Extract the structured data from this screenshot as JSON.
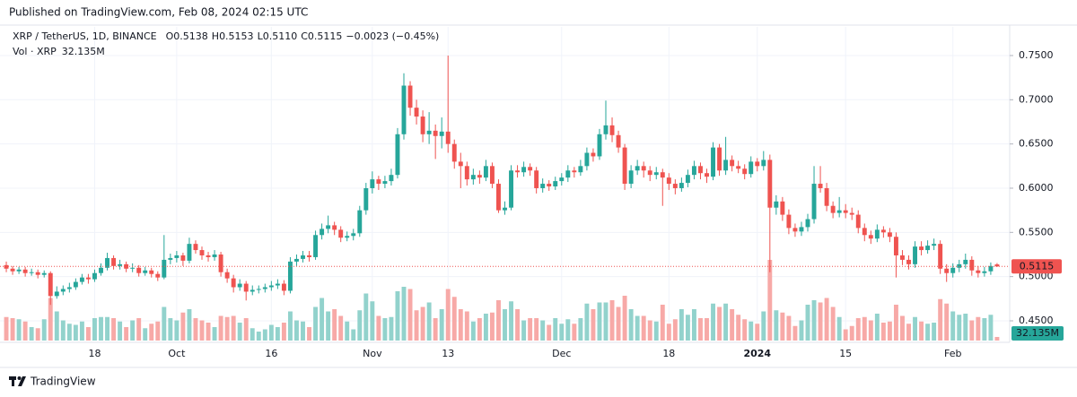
{
  "chart_data": {
    "type": "candlestick",
    "published": "Published on TradingView.com, Feb 08, 2024 02:15 UTC",
    "legend": {
      "symbol": "XRP / TetherUS, 1D, BINANCE",
      "values": [
        {
          "label": "O",
          "value": "0.5138"
        },
        {
          "label": "H",
          "value": "0.5153"
        },
        {
          "label": "L",
          "value": "0.5110"
        },
        {
          "label": "C",
          "value": "0.5115"
        }
      ],
      "change": "−0.0023 (−0.45%)",
      "volume_name": "Vol · XRP"
    },
    "last_volume_label": "32.135M",
    "brand": "TradingView",
    "up_color": "#26a69a",
    "down_color": "#ef5350",
    "volume_up_color": "#92d2cc",
    "volume_down_color": "#f7a9a7",
    "ylim": [
      0.4277,
      0.7824
    ],
    "yticks": [
      {
        "value": 0.45,
        "label": "0.4500"
      },
      {
        "value": 0.5,
        "label": "0.5000"
      },
      {
        "value": 0.55,
        "label": "0.5500"
      },
      {
        "value": 0.6,
        "label": "0.6000"
      },
      {
        "value": 0.65,
        "label": "0.6500"
      },
      {
        "value": 0.7,
        "label": "0.7000"
      },
      {
        "value": 0.75,
        "label": "0.7500"
      }
    ],
    "vol_lim": [
      0,
      1000
    ],
    "xlim": [
      -1,
      159
    ],
    "xticks": [
      {
        "value": 14,
        "label": "18"
      },
      {
        "value": 27,
        "label": "Oct"
      },
      {
        "value": 42,
        "label": "16"
      },
      {
        "value": 58,
        "label": "Nov"
      },
      {
        "value": 70,
        "label": "13"
      },
      {
        "value": 88,
        "label": "Dec"
      },
      {
        "value": 105,
        "label": "18"
      },
      {
        "value": 119,
        "label": "2024"
      },
      {
        "value": 133,
        "label": "15"
      },
      {
        "value": 150,
        "label": "Feb"
      }
    ],
    "grid": true,
    "ohlc": [
      [
        0.513,
        0.517,
        0.505,
        0.509
      ],
      [
        0.509,
        0.512,
        0.502,
        0.506
      ],
      [
        0.506,
        0.511,
        0.503,
        0.508
      ],
      [
        0.508,
        0.511,
        0.5,
        0.504
      ],
      [
        0.504,
        0.509,
        0.501,
        0.505
      ],
      [
        0.505,
        0.508,
        0.498,
        0.502
      ],
      [
        0.502,
        0.507,
        0.499,
        0.504
      ],
      [
        0.504,
        0.506,
        0.468,
        0.478
      ],
      [
        0.478,
        0.489,
        0.475,
        0.483
      ],
      [
        0.483,
        0.49,
        0.479,
        0.486
      ],
      [
        0.486,
        0.493,
        0.482,
        0.488
      ],
      [
        0.488,
        0.498,
        0.485,
        0.494
      ],
      [
        0.494,
        0.503,
        0.491,
        0.499
      ],
      [
        0.499,
        0.503,
        0.492,
        0.497
      ],
      [
        0.497,
        0.508,
        0.494,
        0.504
      ],
      [
        0.504,
        0.515,
        0.501,
        0.51
      ],
      [
        0.51,
        0.527,
        0.507,
        0.521
      ],
      [
        0.521,
        0.524,
        0.508,
        0.512
      ],
      [
        0.512,
        0.519,
        0.508,
        0.514
      ],
      [
        0.514,
        0.517,
        0.505,
        0.509
      ],
      [
        0.509,
        0.515,
        0.505,
        0.51
      ],
      [
        0.51,
        0.513,
        0.5,
        0.504
      ],
      [
        0.504,
        0.511,
        0.501,
        0.507
      ],
      [
        0.507,
        0.51,
        0.499,
        0.503
      ],
      [
        0.503,
        0.506,
        0.495,
        0.499
      ],
      [
        0.499,
        0.547,
        0.497,
        0.519
      ],
      [
        0.519,
        0.526,
        0.514,
        0.521
      ],
      [
        0.521,
        0.529,
        0.516,
        0.524
      ],
      [
        0.524,
        0.527,
        0.512,
        0.518
      ],
      [
        0.518,
        0.544,
        0.515,
        0.537
      ],
      [
        0.537,
        0.541,
        0.526,
        0.53
      ],
      [
        0.53,
        0.534,
        0.519,
        0.524
      ],
      [
        0.524,
        0.528,
        0.517,
        0.522
      ],
      [
        0.522,
        0.53,
        0.518,
        0.525
      ],
      [
        0.525,
        0.528,
        0.5,
        0.505
      ],
      [
        0.505,
        0.509,
        0.493,
        0.498
      ],
      [
        0.498,
        0.502,
        0.482,
        0.488
      ],
      [
        0.488,
        0.497,
        0.484,
        0.492
      ],
      [
        0.492,
        0.495,
        0.473,
        0.483
      ],
      [
        0.483,
        0.49,
        0.479,
        0.485
      ],
      [
        0.485,
        0.49,
        0.481,
        0.486
      ],
      [
        0.486,
        0.492,
        0.482,
        0.488
      ],
      [
        0.488,
        0.495,
        0.484,
        0.49
      ],
      [
        0.49,
        0.497,
        0.486,
        0.492
      ],
      [
        0.492,
        0.496,
        0.479,
        0.484
      ],
      [
        0.484,
        0.522,
        0.481,
        0.517
      ],
      [
        0.517,
        0.525,
        0.512,
        0.52
      ],
      [
        0.52,
        0.529,
        0.516,
        0.524
      ],
      [
        0.524,
        0.529,
        0.517,
        0.522
      ],
      [
        0.522,
        0.552,
        0.519,
        0.547
      ],
      [
        0.547,
        0.56,
        0.542,
        0.554
      ],
      [
        0.554,
        0.569,
        0.549,
        0.558
      ],
      [
        0.558,
        0.562,
        0.547,
        0.553
      ],
      [
        0.553,
        0.557,
        0.539,
        0.544
      ],
      [
        0.544,
        0.551,
        0.54,
        0.546
      ],
      [
        0.546,
        0.554,
        0.541,
        0.549
      ],
      [
        0.549,
        0.58,
        0.545,
        0.575
      ],
      [
        0.575,
        0.606,
        0.57,
        0.6
      ],
      [
        0.6,
        0.619,
        0.594,
        0.61
      ],
      [
        0.61,
        0.614,
        0.598,
        0.605
      ],
      [
        0.605,
        0.614,
        0.6,
        0.608
      ],
      [
        0.608,
        0.622,
        0.603,
        0.615
      ],
      [
        0.615,
        0.668,
        0.611,
        0.661
      ],
      [
        0.661,
        0.73,
        0.655,
        0.716
      ],
      [
        0.716,
        0.721,
        0.682,
        0.691
      ],
      [
        0.691,
        0.7,
        0.672,
        0.681
      ],
      [
        0.681,
        0.688,
        0.652,
        0.661
      ],
      [
        0.661,
        0.686,
        0.65,
        0.665
      ],
      [
        0.665,
        0.672,
        0.633,
        0.659
      ],
      [
        0.659,
        0.68,
        0.645,
        0.664
      ],
      [
        0.664,
        0.75,
        0.64,
        0.65
      ],
      [
        0.65,
        0.655,
        0.622,
        0.63
      ],
      [
        0.63,
        0.64,
        0.6,
        0.625
      ],
      [
        0.625,
        0.63,
        0.603,
        0.61
      ],
      [
        0.61,
        0.622,
        0.604,
        0.615
      ],
      [
        0.615,
        0.62,
        0.605,
        0.612
      ],
      [
        0.612,
        0.632,
        0.608,
        0.625
      ],
      [
        0.625,
        0.629,
        0.6,
        0.605
      ],
      [
        0.605,
        0.61,
        0.572,
        0.575
      ],
      [
        0.575,
        0.585,
        0.57,
        0.578
      ],
      [
        0.578,
        0.626,
        0.575,
        0.62
      ],
      [
        0.62,
        0.626,
        0.612,
        0.618
      ],
      [
        0.618,
        0.63,
        0.613,
        0.624
      ],
      [
        0.624,
        0.628,
        0.614,
        0.62
      ],
      [
        0.62,
        0.624,
        0.594,
        0.6
      ],
      [
        0.6,
        0.611,
        0.595,
        0.605
      ],
      [
        0.605,
        0.609,
        0.597,
        0.602
      ],
      [
        0.602,
        0.613,
        0.598,
        0.608
      ],
      [
        0.608,
        0.617,
        0.603,
        0.612
      ],
      [
        0.612,
        0.626,
        0.607,
        0.62
      ],
      [
        0.62,
        0.624,
        0.612,
        0.618
      ],
      [
        0.618,
        0.632,
        0.614,
        0.625
      ],
      [
        0.625,
        0.646,
        0.62,
        0.64
      ],
      [
        0.64,
        0.645,
        0.63,
        0.636
      ],
      [
        0.636,
        0.667,
        0.632,
        0.661
      ],
      [
        0.661,
        0.699,
        0.655,
        0.671
      ],
      [
        0.671,
        0.68,
        0.652,
        0.66
      ],
      [
        0.66,
        0.665,
        0.64,
        0.646
      ],
      [
        0.646,
        0.65,
        0.598,
        0.605
      ],
      [
        0.605,
        0.626,
        0.6,
        0.62
      ],
      [
        0.62,
        0.632,
        0.615,
        0.625
      ],
      [
        0.625,
        0.63,
        0.612,
        0.62
      ],
      [
        0.62,
        0.625,
        0.608,
        0.615
      ],
      [
        0.615,
        0.624,
        0.61,
        0.618
      ],
      [
        0.618,
        0.622,
        0.58,
        0.612
      ],
      [
        0.612,
        0.617,
        0.598,
        0.605
      ],
      [
        0.605,
        0.61,
        0.593,
        0.6
      ],
      [
        0.6,
        0.612,
        0.596,
        0.606
      ],
      [
        0.606,
        0.621,
        0.601,
        0.615
      ],
      [
        0.615,
        0.631,
        0.61,
        0.625
      ],
      [
        0.625,
        0.629,
        0.61,
        0.617
      ],
      [
        0.617,
        0.622,
        0.606,
        0.613
      ],
      [
        0.613,
        0.652,
        0.609,
        0.646
      ],
      [
        0.646,
        0.65,
        0.614,
        0.62
      ],
      [
        0.62,
        0.658,
        0.615,
        0.632
      ],
      [
        0.632,
        0.637,
        0.619,
        0.625
      ],
      [
        0.625,
        0.631,
        0.617,
        0.622
      ],
      [
        0.622,
        0.627,
        0.61,
        0.616
      ],
      [
        0.616,
        0.636,
        0.612,
        0.63
      ],
      [
        0.63,
        0.634,
        0.619,
        0.625
      ],
      [
        0.625,
        0.642,
        0.62,
        0.632
      ],
      [
        0.632,
        0.638,
        0.505,
        0.578
      ],
      [
        0.578,
        0.592,
        0.57,
        0.585
      ],
      [
        0.585,
        0.59,
        0.563,
        0.57
      ],
      [
        0.57,
        0.576,
        0.548,
        0.555
      ],
      [
        0.555,
        0.56,
        0.545,
        0.551
      ],
      [
        0.551,
        0.562,
        0.546,
        0.556
      ],
      [
        0.556,
        0.571,
        0.551,
        0.565
      ],
      [
        0.565,
        0.625,
        0.56,
        0.605
      ],
      [
        0.605,
        0.625,
        0.595,
        0.6
      ],
      [
        0.6,
        0.606,
        0.574,
        0.58
      ],
      [
        0.58,
        0.585,
        0.566,
        0.572
      ],
      [
        0.572,
        0.59,
        0.567,
        0.575
      ],
      [
        0.575,
        0.582,
        0.566,
        0.572
      ],
      [
        0.572,
        0.578,
        0.564,
        0.57
      ],
      [
        0.57,
        0.575,
        0.549,
        0.555
      ],
      [
        0.555,
        0.56,
        0.54,
        0.547
      ],
      [
        0.547,
        0.552,
        0.537,
        0.543
      ],
      [
        0.543,
        0.559,
        0.539,
        0.553
      ],
      [
        0.553,
        0.557,
        0.544,
        0.55
      ],
      [
        0.55,
        0.555,
        0.539,
        0.545
      ],
      [
        0.545,
        0.55,
        0.499,
        0.524
      ],
      [
        0.524,
        0.53,
        0.513,
        0.519
      ],
      [
        0.519,
        0.524,
        0.508,
        0.514
      ],
      [
        0.514,
        0.54,
        0.51,
        0.534
      ],
      [
        0.534,
        0.54,
        0.524,
        0.53
      ],
      [
        0.53,
        0.541,
        0.526,
        0.535
      ],
      [
        0.535,
        0.543,
        0.53,
        0.537
      ],
      [
        0.537,
        0.541,
        0.503,
        0.509
      ],
      [
        0.509,
        0.514,
        0.494,
        0.504
      ],
      [
        0.504,
        0.515,
        0.499,
        0.51
      ],
      [
        0.51,
        0.519,
        0.505,
        0.514
      ],
      [
        0.514,
        0.526,
        0.509,
        0.519
      ],
      [
        0.519,
        0.523,
        0.501,
        0.507
      ],
      [
        0.507,
        0.512,
        0.499,
        0.504
      ],
      [
        0.504,
        0.511,
        0.5,
        0.506
      ],
      [
        0.506,
        0.516,
        0.502,
        0.512
      ],
      [
        0.5138,
        0.5153,
        0.511,
        0.5115
      ]
    ],
    "volume": [
      210,
      200,
      190,
      170,
      120,
      110,
      190,
      380,
      260,
      180,
      150,
      140,
      170,
      120,
      200,
      210,
      210,
      200,
      170,
      120,
      180,
      200,
      110,
      150,
      170,
      300,
      200,
      180,
      250,
      280,
      200,
      180,
      160,
      120,
      220,
      210,
      220,
      160,
      200,
      110,
      80,
      100,
      140,
      120,
      160,
      260,
      180,
      170,
      120,
      300,
      380,
      260,
      280,
      220,
      170,
      100,
      270,
      420,
      350,
      220,
      200,
      210,
      440,
      480,
      460,
      270,
      300,
      340,
      200,
      280,
      460,
      390,
      280,
      260,
      170,
      200,
      240,
      250,
      360,
      280,
      350,
      280,
      180,
      200,
      200,
      180,
      140,
      200,
      150,
      190,
      150,
      200,
      330,
      280,
      340,
      340,
      360,
      300,
      400,
      280,
      220,
      220,
      180,
      170,
      320,
      150,
      190,
      280,
      230,
      280,
      200,
      200,
      330,
      300,
      330,
      280,
      230,
      190,
      170,
      150,
      260,
      720,
      270,
      250,
      220,
      130,
      180,
      320,
      360,
      340,
      380,
      300,
      210,
      100,
      130,
      200,
      210,
      180,
      240,
      160,
      170,
      320,
      220,
      150,
      210,
      170,
      150,
      160,
      370,
      330,
      260,
      230,
      240,
      180,
      210,
      200,
      230,
      32.135
    ]
  }
}
